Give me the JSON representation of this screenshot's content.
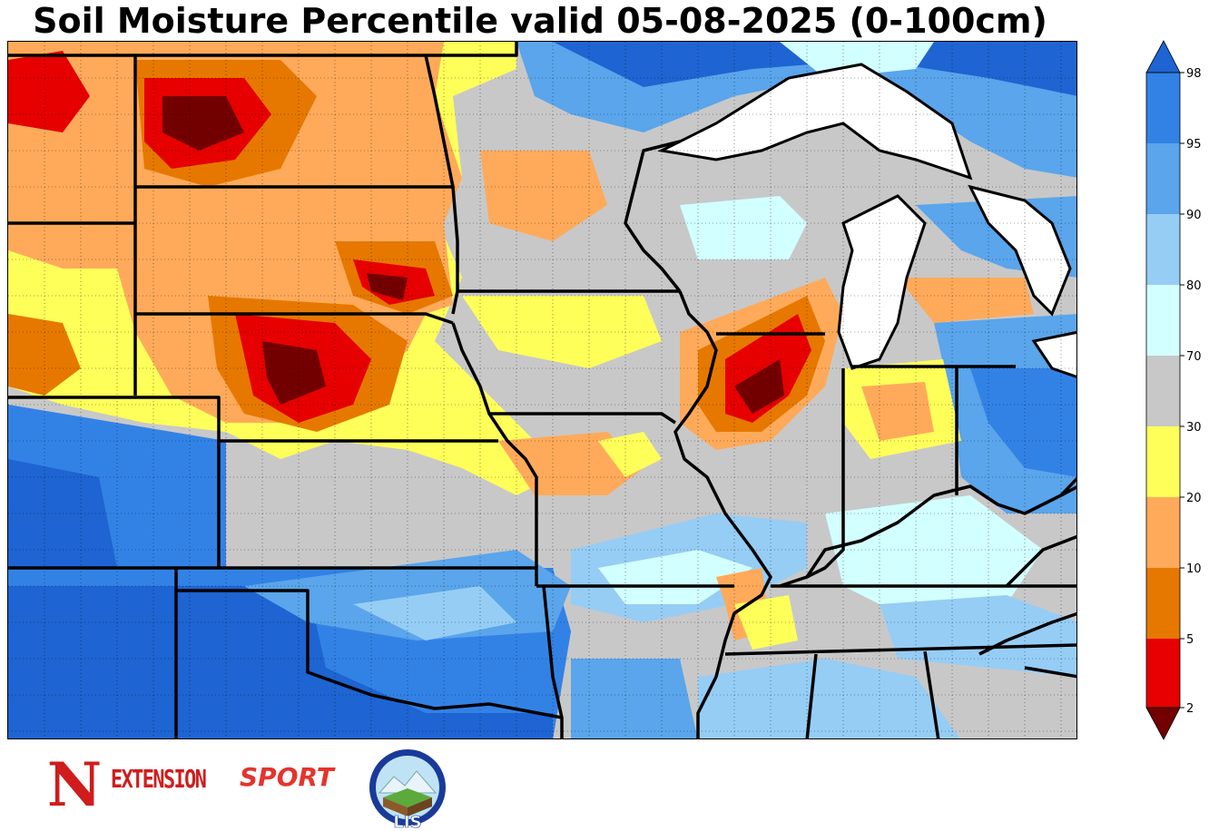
{
  "title": "Soil Moisture Percentile valid 05-08-2025 (0-100cm)",
  "colorbar": {
    "ticks": [
      "2",
      "5",
      "10",
      "20",
      "30",
      "70",
      "80",
      "90",
      "95",
      "98"
    ],
    "bins": [
      {
        "range": "<2",
        "color": "#730000"
      },
      {
        "range": "2-5",
        "color": "#e60000"
      },
      {
        "range": "5-10",
        "color": "#e67800"
      },
      {
        "range": "10-20",
        "color": "#ffaa5a"
      },
      {
        "range": "20-30",
        "color": "#ffff5a"
      },
      {
        "range": "30-70",
        "color": "#c8c8c8"
      },
      {
        "range": "70-80",
        "color": "#d2ffff"
      },
      {
        "range": "80-90",
        "color": "#96cdf5"
      },
      {
        "range": "90-95",
        "color": "#5aa5eb"
      },
      {
        "range": "95-98",
        "color": "#3282e6"
      },
      {
        "range": ">98",
        "color": "#1e64d2"
      }
    ]
  },
  "logos": {
    "extension_text": "EXTENSION",
    "sport_text": "SPORT",
    "lis_text": "LIS",
    "n_letter": "N"
  }
}
